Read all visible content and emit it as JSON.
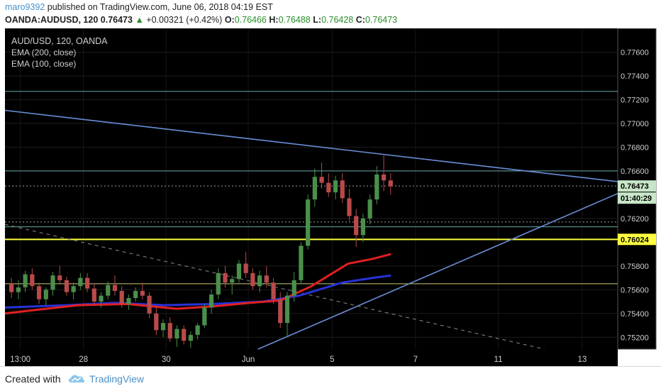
{
  "header": {
    "author": "maro9392",
    "published_text": "published on TradingView.com, June 06, 2018 04:19 EST",
    "symbol": "OANDA:AUDUSD, 120",
    "last": "0.76473",
    "change_arrow": "▲",
    "change": "+0.00321 (+0.42%)",
    "o_label": "O:",
    "o_value": "0.76466",
    "h_label": "H:",
    "h_value": "0.76488",
    "l_label": "L:",
    "l_value": "0.76428",
    "c_label": "C:",
    "c_value": "0.76473"
  },
  "legend": {
    "title": "AUD/USD, 120, OANDA",
    "ema1": "EMA (200, close)",
    "ema2": "EMA (100, close)"
  },
  "footer": {
    "created_with": "Created with",
    "brand": "TradingView"
  },
  "colors": {
    "background": "#000000",
    "up_candle": "#4a8f4a",
    "down_candle": "#b84a4a",
    "ema200": "#e02020",
    "ema100": "#2832d8",
    "trendline": "#6a8fd8",
    "yellow_level": "#ffff40",
    "olive_level": "#c8c870",
    "teal_level": "#64a8a8"
  },
  "chart_data": {
    "type": "candlestick",
    "instrument": "AUD/USD",
    "timeframe": "120",
    "ylim": [
      0.751,
      0.778
    ],
    "y_ticks": [
      0.752,
      0.754,
      0.756,
      0.758,
      0.762,
      0.766,
      0.768,
      0.77,
      0.772,
      0.774,
      0.776
    ],
    "y_tick_labels": [
      "0.75200",
      "0.75400",
      "0.75600",
      "0.75800",
      "0.76200",
      "0.76600",
      "0.76800",
      "0.77000",
      "0.77200",
      "0.77400",
      "0.77600"
    ],
    "x_tick_labels": [
      "13:00",
      "28",
      "30",
      "Jun",
      "5",
      "7",
      "11",
      "13"
    ],
    "price_label": "0.76473",
    "countdown_label": "01:40:29",
    "level_label": "0.76024",
    "levels": [
      {
        "name": "upper-resistance",
        "value": 0.7727,
        "color": "#64a8a8"
      },
      {
        "name": "resistance",
        "value": 0.766,
        "color": "#64a8a8"
      },
      {
        "name": "current-price",
        "value": 0.76473,
        "color": "#a0a0a0",
        "dashed": true
      },
      {
        "name": "support-1",
        "value": 0.7617,
        "color": "#a0a0a0",
        "dashed": true
      },
      {
        "name": "support-2",
        "value": 0.7613,
        "color": "#64a8a8"
      },
      {
        "name": "key-support",
        "value": 0.76024,
        "color": "#ffff40"
      },
      {
        "name": "lower-support",
        "value": 0.7565,
        "color": "#c8c870"
      }
    ],
    "trendlines": [
      {
        "name": "descending-resistance",
        "points": [
          [
            0,
            0.7711
          ],
          [
            1,
            0.7651
          ]
        ]
      },
      {
        "name": "ascending-support",
        "points": [
          [
            0.413,
            0.751
          ],
          [
            1,
            0.7641
          ]
        ]
      },
      {
        "name": "descending-dashed",
        "points": [
          [
            0,
            0.7615
          ],
          [
            0.88,
            0.751
          ]
        ],
        "dashed": true
      }
    ],
    "ema200": [
      [
        0,
        0.754
      ],
      [
        0.05,
        0.7543
      ],
      [
        0.12,
        0.7547
      ],
      [
        0.2,
        0.7548
      ],
      [
        0.28,
        0.7544
      ],
      [
        0.34,
        0.7546
      ],
      [
        0.4,
        0.7549
      ],
      [
        0.45,
        0.7551
      ],
      [
        0.5,
        0.7563
      ],
      [
        0.56,
        0.7582
      ],
      [
        0.6,
        0.7586
      ],
      [
        0.63,
        0.759
      ]
    ],
    "ema100": [
      [
        0,
        0.7545
      ],
      [
        0.1,
        0.7547
      ],
      [
        0.18,
        0.7549
      ],
      [
        0.26,
        0.7547
      ],
      [
        0.34,
        0.7548
      ],
      [
        0.42,
        0.755
      ],
      [
        0.48,
        0.7555
      ],
      [
        0.55,
        0.7566
      ],
      [
        0.6,
        0.757
      ],
      [
        0.63,
        0.7572
      ]
    ],
    "candles": [
      [
        0.7565,
        0.757,
        0.7553,
        0.7558
      ],
      [
        0.7558,
        0.7568,
        0.7552,
        0.7562
      ],
      [
        0.7562,
        0.7576,
        0.7558,
        0.7573
      ],
      [
        0.7573,
        0.7578,
        0.756,
        0.7563
      ],
      [
        0.7563,
        0.7566,
        0.7548,
        0.7552
      ],
      [
        0.7552,
        0.7562,
        0.7547,
        0.756
      ],
      [
        0.756,
        0.7575,
        0.7555,
        0.7572
      ],
      [
        0.7572,
        0.758,
        0.7565,
        0.7568
      ],
      [
        0.7568,
        0.7571,
        0.7555,
        0.7558
      ],
      [
        0.7558,
        0.7566,
        0.7552,
        0.7563
      ],
      [
        0.7563,
        0.7574,
        0.756,
        0.757
      ],
      [
        0.757,
        0.7574,
        0.7558,
        0.7561
      ],
      [
        0.7561,
        0.7565,
        0.7547,
        0.755
      ],
      [
        0.755,
        0.7558,
        0.7545,
        0.7555
      ],
      [
        0.7555,
        0.7567,
        0.7552,
        0.7564
      ],
      [
        0.7564,
        0.7572,
        0.7555,
        0.7559
      ],
      [
        0.7559,
        0.7563,
        0.7545,
        0.7548
      ],
      [
        0.7548,
        0.7556,
        0.7543,
        0.7553
      ],
      [
        0.7553,
        0.7562,
        0.755,
        0.7559
      ],
      [
        0.7559,
        0.7566,
        0.7552,
        0.7555
      ],
      [
        0.7555,
        0.7558,
        0.7536,
        0.754
      ],
      [
        0.754,
        0.7546,
        0.7522,
        0.7526
      ],
      [
        0.7526,
        0.7535,
        0.752,
        0.7532
      ],
      [
        0.7532,
        0.7537,
        0.7516,
        0.7519
      ],
      [
        0.7519,
        0.753,
        0.7512,
        0.7527
      ],
      [
        0.7527,
        0.753,
        0.7514,
        0.7517
      ],
      [
        0.7517,
        0.7525,
        0.7511,
        0.7522
      ],
      [
        0.7522,
        0.7532,
        0.7518,
        0.753
      ],
      [
        0.753,
        0.7548,
        0.7528,
        0.7545
      ],
      [
        0.7545,
        0.756,
        0.754,
        0.7556
      ],
      [
        0.7556,
        0.7578,
        0.7552,
        0.7574
      ],
      [
        0.7574,
        0.758,
        0.7562,
        0.7566
      ],
      [
        0.7566,
        0.7572,
        0.7556,
        0.7569
      ],
      [
        0.7569,
        0.7585,
        0.7566,
        0.7582
      ],
      [
        0.7582,
        0.7592,
        0.757,
        0.7574
      ],
      [
        0.7574,
        0.7578,
        0.756,
        0.7563
      ],
      [
        0.7563,
        0.7576,
        0.7558,
        0.7572
      ],
      [
        0.7572,
        0.758,
        0.7562,
        0.7566
      ],
      [
        0.7566,
        0.757,
        0.7548,
        0.7552
      ],
      [
        0.7552,
        0.7558,
        0.7528,
        0.7532
      ],
      [
        0.7532,
        0.7558,
        0.752,
        0.7555
      ],
      [
        0.7555,
        0.7575,
        0.755,
        0.7568
      ],
      [
        0.7568,
        0.76,
        0.7565,
        0.7597
      ],
      [
        0.7597,
        0.764,
        0.7594,
        0.7636
      ],
      [
        0.7636,
        0.7662,
        0.763,
        0.7655
      ],
      [
        0.7655,
        0.7667,
        0.7645,
        0.765
      ],
      [
        0.765,
        0.7658,
        0.7638,
        0.7642
      ],
      [
        0.7642,
        0.7656,
        0.7636,
        0.7652
      ],
      [
        0.7652,
        0.7658,
        0.7633,
        0.7637
      ],
      [
        0.7637,
        0.7645,
        0.7618,
        0.7622
      ],
      [
        0.7622,
        0.7628,
        0.7596,
        0.7606
      ],
      [
        0.7606,
        0.7624,
        0.76,
        0.762
      ],
      [
        0.762,
        0.764,
        0.7615,
        0.7636
      ],
      [
        0.7636,
        0.7664,
        0.7632,
        0.7657
      ],
      [
        0.7657,
        0.7673,
        0.7643,
        0.7652
      ],
      [
        0.7652,
        0.7658,
        0.764,
        0.7647
      ]
    ]
  }
}
